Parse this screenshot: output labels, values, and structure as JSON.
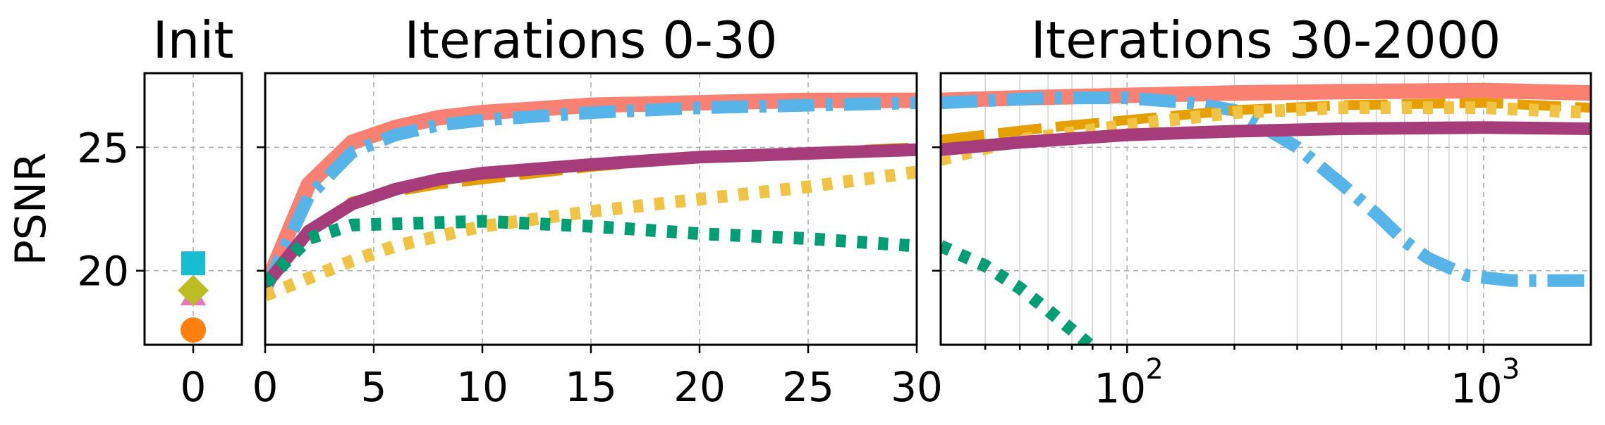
{
  "chart_data": [
    {
      "panel": "init",
      "type": "scatter",
      "title": "Init",
      "ylabel": "PSNR",
      "xlim": [
        -1,
        1
      ],
      "ylim": [
        17,
        28
      ],
      "xticks": [
        0
      ],
      "yticks": [
        20,
        25
      ],
      "grid": true,
      "points": [
        {
          "x": 0,
          "y": 20.3,
          "marker": "square",
          "color": "#17becf"
        },
        {
          "x": 0,
          "y": 19.0,
          "marker": "triangle",
          "color": "#e377c2"
        },
        {
          "x": 0,
          "y": 19.2,
          "marker": "diamond",
          "color": "#bcbd22"
        },
        {
          "x": 0,
          "y": 17.6,
          "marker": "circle",
          "color": "#ff7f0e"
        }
      ]
    },
    {
      "panel": "early",
      "type": "line",
      "title": "Iterations 0-30",
      "xlim": [
        0,
        30
      ],
      "ylim": [
        17,
        28
      ],
      "xticks": [
        0,
        5,
        10,
        15,
        20,
        25,
        30
      ],
      "yticks": [
        20,
        25
      ],
      "grid": true,
      "series": [
        {
          "color": "#fa8072",
          "style": "solid",
          "width": 22,
          "points": [
            [
              0,
              19.3
            ],
            [
              2,
              23.5
            ],
            [
              4,
              25.2
            ],
            [
              6,
              25.8
            ],
            [
              8,
              26.2
            ],
            [
              10,
              26.4
            ],
            [
              15,
              26.7
            ],
            [
              20,
              26.8
            ],
            [
              25,
              26.9
            ],
            [
              30,
              26.9
            ]
          ]
        },
        {
          "color": "#56b4e9",
          "style": "dashdot",
          "width": 18,
          "points": [
            [
              0,
              19.2
            ],
            [
              2,
              23.0
            ],
            [
              4,
              24.8
            ],
            [
              6,
              25.5
            ],
            [
              8,
              25.9
            ],
            [
              10,
              26.1
            ],
            [
              15,
              26.4
            ],
            [
              20,
              26.6
            ],
            [
              25,
              26.7
            ],
            [
              30,
              26.8
            ]
          ]
        },
        {
          "color": "#e69f00",
          "style": "dashed",
          "width": 14,
          "points": [
            [
              0,
              19.5
            ],
            [
              2,
              21.5
            ],
            [
              4,
              22.8
            ],
            [
              6,
              23.2
            ],
            [
              8,
              23.5
            ],
            [
              10,
              23.7
            ],
            [
              15,
              24.2
            ],
            [
              20,
              24.6
            ],
            [
              25,
              24.8
            ],
            [
              30,
              25.0
            ]
          ]
        },
        {
          "color": "#a63c7a",
          "style": "solid",
          "width": 18,
          "points": [
            [
              0,
              19.4
            ],
            [
              2,
              21.6
            ],
            [
              4,
              22.7
            ],
            [
              6,
              23.3
            ],
            [
              8,
              23.7
            ],
            [
              10,
              23.95
            ],
            [
              15,
              24.3
            ],
            [
              20,
              24.6
            ],
            [
              25,
              24.75
            ],
            [
              30,
              24.9
            ]
          ]
        },
        {
          "color": "#f0c442",
          "style": "dotted",
          "width": 18,
          "points": [
            [
              0,
              19.0
            ],
            [
              2,
              19.7
            ],
            [
              4,
              20.4
            ],
            [
              6,
              21.0
            ],
            [
              8,
              21.4
            ],
            [
              10,
              21.8
            ],
            [
              15,
              22.4
            ],
            [
              20,
              22.9
            ],
            [
              25,
              23.4
            ],
            [
              30,
              24.0
            ]
          ]
        },
        {
          "color": "#009e73",
          "style": "dotted",
          "width": 18,
          "points": [
            [
              0,
              19.5
            ],
            [
              2,
              21.3
            ],
            [
              4,
              21.85
            ],
            [
              6,
              21.9
            ],
            [
              8,
              21.95
            ],
            [
              10,
              22.0
            ],
            [
              15,
              21.8
            ],
            [
              20,
              21.5
            ],
            [
              25,
              21.3
            ],
            [
              30,
              21.0
            ]
          ]
        }
      ]
    },
    {
      "panel": "late",
      "type": "line",
      "xscale": "log",
      "title": "Iterations 30-2000",
      "xlim": [
        30,
        2000
      ],
      "ylim": [
        17,
        28
      ],
      "xticks": [
        {
          "value": 100,
          "base": "10",
          "exp": "2"
        },
        {
          "value": 1000,
          "base": "10",
          "exp": "3"
        }
      ],
      "yticks": [
        20,
        25
      ],
      "grid": true,
      "series": [
        {
          "color": "#fa8072",
          "style": "solid",
          "width": 22,
          "points": [
            [
              30,
              26.9
            ],
            [
              50,
              27.0
            ],
            [
              100,
              27.1
            ],
            [
              200,
              27.2
            ],
            [
              400,
              27.25
            ],
            [
              1000,
              27.3
            ],
            [
              2000,
              27.2
            ]
          ]
        },
        {
          "color": "#56b4e9",
          "style": "dashdot",
          "width": 18,
          "points": [
            [
              30,
              26.8
            ],
            [
              60,
              27.0
            ],
            [
              100,
              27.0
            ],
            [
              150,
              26.8
            ],
            [
              200,
              26.5
            ],
            [
              300,
              25.0
            ],
            [
              400,
              23.5
            ],
            [
              500,
              22.3
            ],
            [
              600,
              21.2
            ],
            [
              700,
              20.5
            ],
            [
              900,
              19.8
            ],
            [
              1200,
              19.6
            ],
            [
              2000,
              19.6
            ]
          ]
        },
        {
          "color": "#e69f00",
          "style": "dashed",
          "width": 14,
          "points": [
            [
              30,
              25.3
            ],
            [
              60,
              25.8
            ],
            [
              100,
              26.1
            ],
            [
              200,
              26.5
            ],
            [
              400,
              26.7
            ],
            [
              1000,
              26.8
            ],
            [
              2000,
              26.6
            ]
          ]
        },
        {
          "color": "#f0c442",
          "style": "dotted",
          "width": 18,
          "points": [
            [
              30,
              24.5
            ],
            [
              50,
              25.3
            ],
            [
              100,
              25.9
            ],
            [
              200,
              26.4
            ],
            [
              400,
              26.6
            ],
            [
              1000,
              26.6
            ],
            [
              2000,
              26.4
            ]
          ]
        },
        {
          "color": "#a63c7a",
          "style": "solid",
          "width": 18,
          "points": [
            [
              30,
              24.9
            ],
            [
              50,
              25.2
            ],
            [
              100,
              25.5
            ],
            [
              200,
              25.65
            ],
            [
              400,
              25.75
            ],
            [
              1000,
              25.8
            ],
            [
              2000,
              25.75
            ]
          ]
        },
        {
          "color": "#009e73",
          "style": "dotted",
          "width": 18,
          "points": [
            [
              30,
              21.0
            ],
            [
              40,
              20.2
            ],
            [
              50,
              19.3
            ],
            [
              60,
              18.4
            ],
            [
              70,
              17.6
            ],
            [
              80,
              16.9
            ]
          ]
        }
      ]
    }
  ]
}
